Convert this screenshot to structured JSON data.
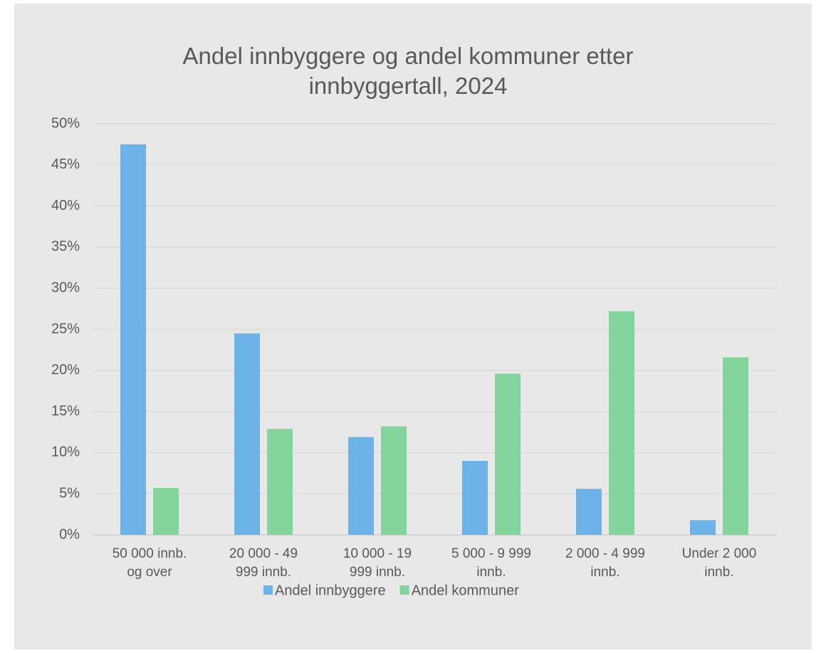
{
  "chart_data": {
    "type": "bar",
    "title": "Andel innbyggere og andel kommuner etter innbyggertall, 2024",
    "categories": [
      "50 000 innb. og over",
      "20 000 - 49 999 innb.",
      "10 000 - 19 999 innb.",
      "5 000 - 9 999 innb.",
      "2 000 - 4 999 innb.",
      "Under 2 000 innb."
    ],
    "series": [
      {
        "name": "Andel innbyggere",
        "color": "#6cb4e8",
        "values": [
          47.5,
          24.5,
          11.9,
          9.0,
          5.6,
          1.8
        ]
      },
      {
        "name": "Andel kommuner",
        "color": "#83d39c",
        "values": [
          5.7,
          12.9,
          13.2,
          19.6,
          27.2,
          21.6
        ]
      }
    ],
    "ylim": [
      0,
      50
    ],
    "yticks": [
      {
        "value": 0,
        "label": "0%"
      },
      {
        "value": 5,
        "label": "5%"
      },
      {
        "value": 10,
        "label": "10%"
      },
      {
        "value": 15,
        "label": "15%"
      },
      {
        "value": 20,
        "label": "20%"
      },
      {
        "value": 25,
        "label": "25%"
      },
      {
        "value": 30,
        "label": "30%"
      },
      {
        "value": 35,
        "label": "35%"
      },
      {
        "value": 40,
        "label": "40%"
      },
      {
        "value": 45,
        "label": "45%"
      },
      {
        "value": 50,
        "label": "50%"
      }
    ],
    "grid": true,
    "legend": "bottom"
  }
}
